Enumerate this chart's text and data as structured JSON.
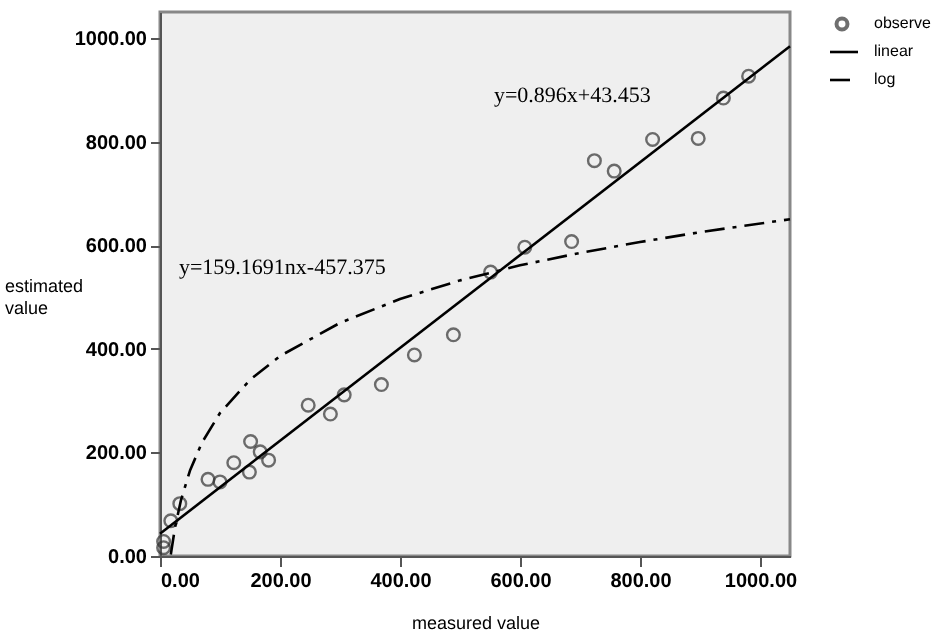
{
  "chart_data": {
    "type": "scatter",
    "xlabel": "measured value",
    "ylabel": "estimated value",
    "xlim": [
      0,
      1050
    ],
    "ylim": [
      0,
      1050
    ],
    "xticks": [
      {
        "value": 0,
        "label": "0.00"
      },
      {
        "value": 200,
        "label": "200.00"
      },
      {
        "value": 400,
        "label": "400.00"
      },
      {
        "value": 600,
        "label": "600.00"
      },
      {
        "value": 800,
        "label": "800.00"
      },
      {
        "value": 1000,
        "label": "1000.00"
      }
    ],
    "yticks": [
      {
        "value": 0,
        "label": "0.00"
      },
      {
        "value": 200,
        "label": "200.00"
      },
      {
        "value": 400,
        "label": "400.00"
      },
      {
        "value": 600,
        "label": "600.00"
      },
      {
        "value": 800,
        "label": "800.00"
      },
      {
        "value": 1000,
        "label": "1000.00"
      }
    ],
    "grid": false,
    "legend": "top right",
    "series": [
      {
        "name": "observe",
        "marker": "circle",
        "color": "#333333",
        "x": [
          6,
          6,
          18,
          33,
          80,
          100,
          123,
          149,
          151,
          167,
          181,
          247,
          284,
          307,
          369,
          424,
          489,
          551,
          608,
          686,
          724,
          757,
          821,
          897,
          939,
          981
        ],
        "values": [
          16,
          28,
          68,
          101,
          148,
          143,
          180,
          162,
          221,
          201,
          185,
          291,
          274,
          311,
          331,
          388,
          427,
          548,
          596,
          607,
          763,
          743,
          804,
          806,
          884,
          926
        ]
      },
      {
        "name": "linear",
        "type": "line",
        "line_style": "solid",
        "color": "#000000",
        "x": [
          0,
          1050
        ],
        "values": [
          43,
          984
        ]
      },
      {
        "name": "log",
        "type": "line",
        "line_style": "dashed",
        "color": "#000000",
        "x": [
          18,
          25,
          35,
          50,
          70,
          100,
          150,
          200,
          300,
          400,
          500,
          600,
          700,
          800,
          900,
          1050
        ],
        "values": [
          3,
          55,
          108,
          165,
          219,
          276,
          340,
          386,
          450,
          496,
          532,
          561,
          585,
          606,
          625,
          650
        ]
      }
    ],
    "annotations": [
      "y=0.896x+43.453",
      "y=159.1691nx-457.375"
    ]
  }
}
